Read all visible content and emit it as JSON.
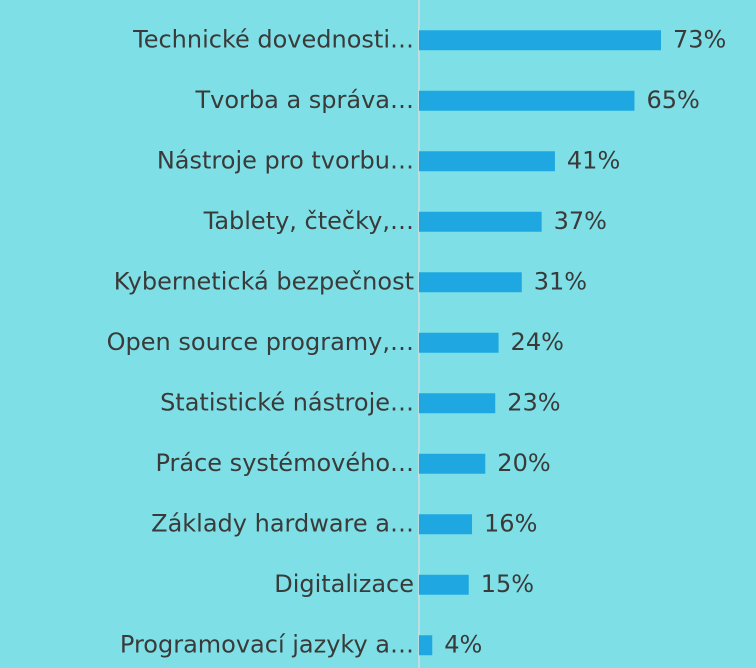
{
  "chart_data": {
    "type": "bar",
    "orientation": "horizontal",
    "categories": [
      "Technické dovednosti…",
      "Tvorba a správa…",
      "Nástroje pro tvorbu…",
      "Tablety, čtečky,…",
      "Kybernetická bezpečnost",
      "Open source programy,…",
      "Statistické nástroje…",
      "Práce systémového…",
      "Základy hardware a…",
      "Digitalizace",
      "Programovací jazyky a…"
    ],
    "values": [
      73,
      65,
      41,
      37,
      31,
      24,
      23,
      20,
      16,
      15,
      4
    ],
    "value_labels": [
      "73%",
      "65%",
      "41%",
      "37%",
      "31%",
      "24%",
      "23%",
      "20%",
      "16%",
      "15%",
      "4%"
    ],
    "color": "#1ea7e1",
    "xlim": [
      0,
      100
    ]
  }
}
